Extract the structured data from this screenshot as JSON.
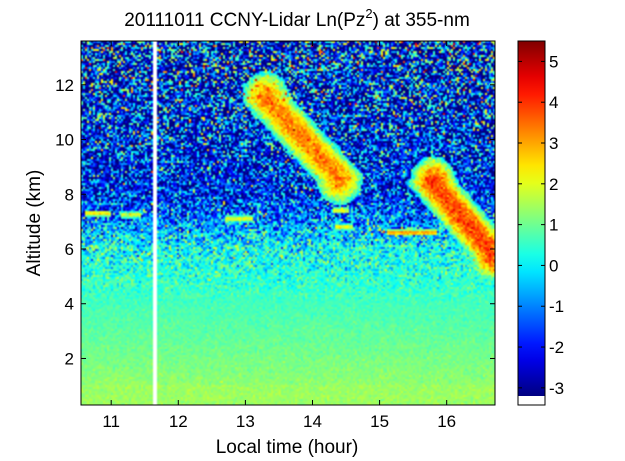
{
  "chart_data": {
    "type": "heatmap",
    "title_parts": [
      "20111011 CCNY-Lidar Ln(Pz",
      "2",
      ") at 355-nm"
    ],
    "xlabel": "Local time (hour)",
    "ylabel": "Altitude (km)",
    "xlim": [
      10.55,
      16.72
    ],
    "ylim": [
      0.3,
      13.6
    ],
    "xticks": [
      11,
      12,
      13,
      14,
      15,
      16
    ],
    "yticks": [
      2,
      4,
      6,
      8,
      10,
      12
    ],
    "colorbar": {
      "colormap": "jet",
      "range": [
        -3.2,
        5.5
      ],
      "ticks": [
        5,
        4,
        3,
        2,
        1,
        0,
        -1,
        -2,
        -3
      ],
      "tick_labels": [
        "5",
        "4",
        "3",
        "2",
        "1",
        "0",
        "-1",
        "-2",
        "-3"
      ],
      "nodata_color": "#ffffff"
    },
    "data_gap": {
      "x_start": 11.62,
      "x_end": 11.68
    },
    "features": [
      {
        "kind": "background_decay",
        "value_at_ground": 1.3,
        "value_at_6km": 0.2,
        "value_above_8km": -2.0
      },
      {
        "kind": "cloud_streak",
        "x_start": 13.3,
        "y_start": 11.5,
        "x_end": 14.4,
        "y_end": 8.6,
        "peak_value": 3.3
      },
      {
        "kind": "cloud_streak",
        "x_start": 15.8,
        "y_start": 8.4,
        "x_end": 16.7,
        "y_end": 5.8,
        "peak_value": 3.8
      },
      {
        "kind": "cloud_layer",
        "x_start": 15.1,
        "x_end": 15.85,
        "y": 6.6,
        "peak_value": 3.2
      },
      {
        "kind": "aerosol_layer",
        "x_start": 10.6,
        "x_end": 11.0,
        "y": 7.3,
        "peak_value": 2.3
      },
      {
        "kind": "aerosol_layer",
        "x_start": 11.15,
        "x_end": 11.45,
        "y": 7.25,
        "peak_value": 1.9
      },
      {
        "kind": "aerosol_layer",
        "x_start": 12.7,
        "x_end": 13.1,
        "y": 7.1,
        "peak_value": 2.0
      },
      {
        "kind": "aerosol_layer",
        "x_start": 14.3,
        "x_end": 14.55,
        "y": 7.4,
        "peak_value": 2.1
      },
      {
        "kind": "aerosol_layer",
        "x_start": 14.35,
        "x_end": 14.6,
        "y": 6.8,
        "peak_value": 2.1
      }
    ]
  }
}
